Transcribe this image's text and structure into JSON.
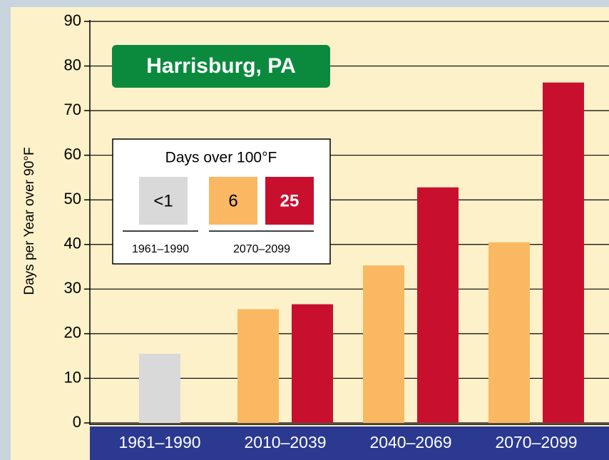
{
  "chart_data": {
    "type": "bar",
    "title": "Harrisburg, PA",
    "y_label": "Days per Year over 90°F",
    "categories": [
      "1961–1990",
      "2010–2039",
      "2040–2069",
      "2070–2099"
    ],
    "series": [
      {
        "color": "#d9d9d9",
        "values": [
          15.5,
          null,
          null,
          null
        ]
      },
      {
        "color": "#fbb862",
        "values": [
          null,
          25.5,
          35.3,
          40.5
        ]
      },
      {
        "color": "#c8102e",
        "values": [
          null,
          26.6,
          52.8,
          76.3
        ]
      }
    ],
    "ylim": [
      0,
      90
    ],
    "yticks": [
      0,
      10,
      20,
      30,
      40,
      50,
      60,
      70,
      80,
      90
    ],
    "grid": true,
    "inset": {
      "title": "Days over 100°F",
      "items": [
        {
          "label": "<1",
          "color": "#d9d9d9"
        },
        {
          "value": 6,
          "color": "#fbb862"
        },
        {
          "value": 25,
          "color": "#c8102e"
        }
      ],
      "periods": [
        "1961–1990",
        "2070–2099"
      ]
    }
  }
}
